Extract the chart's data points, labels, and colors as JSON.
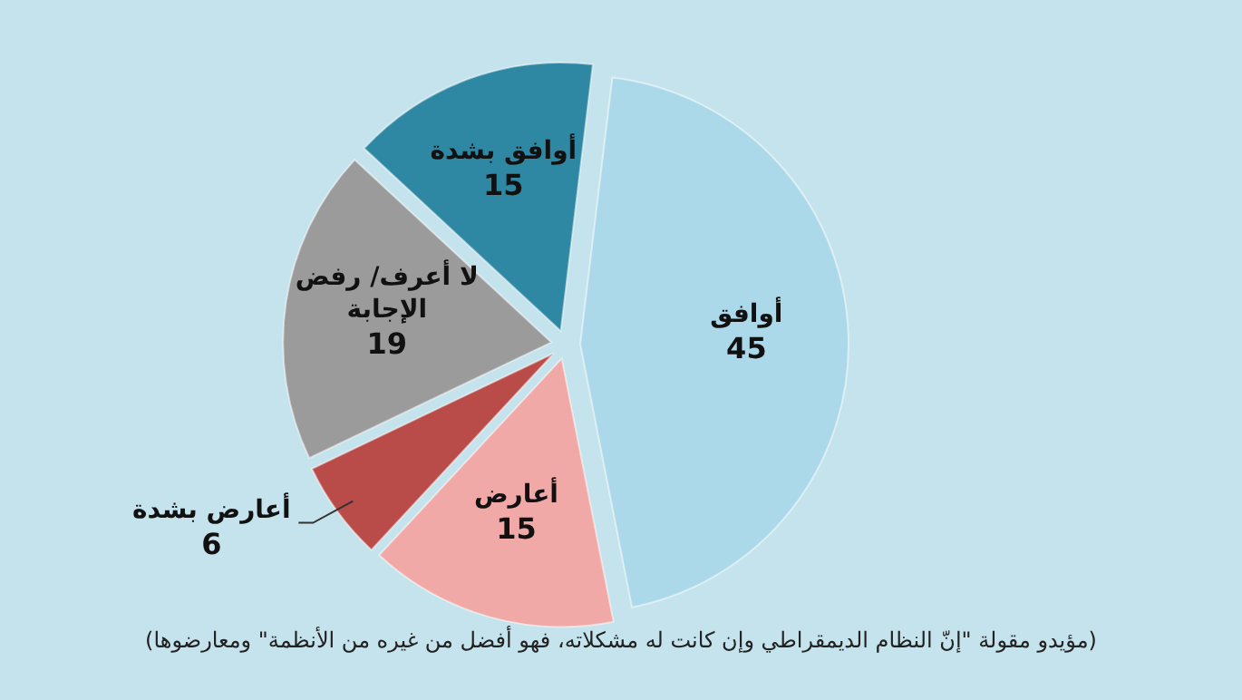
{
  "chart_data": {
    "type": "pie",
    "categories": [
      "أوافق",
      "أعارض",
      "أعارض بشدة",
      "لا أعرف/ رفض الإجابة",
      "أوافق بشدة"
    ],
    "values": [
      45,
      15,
      6,
      19,
      15
    ],
    "colors": [
      "#acd9ea",
      "#f0a9a6",
      "#b94b48",
      "#9b9b9b",
      "#2f88a3"
    ],
    "data_labels": true,
    "annotations": [
      "(مؤيدو مقولة \"إنّ النظام الديمقراطي وإن كانت له مشكلاته، فهو أفضل من غيره من الأنظمة\" ومعارضوها)"
    ]
  }
}
